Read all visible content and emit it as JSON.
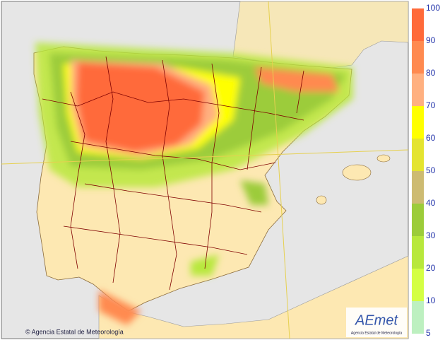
{
  "legend": {
    "labels": [
      100,
      90,
      80,
      70,
      60,
      50,
      40,
      30,
      20,
      10,
      5
    ],
    "colors": [
      "#ff6a3a",
      "#ff8a50",
      "#ffb080",
      "#ffff00",
      "#e4e430",
      "#cdbb72",
      "#9ccc3a",
      "#b8e83c",
      "#d4ff44",
      "#bdf0c0"
    ]
  },
  "credit": "© Agencia Estatal de Meteorología",
  "logo": {
    "name": "AEmet",
    "subtitle": "Agencia Estatal de Meteorología"
  }
}
